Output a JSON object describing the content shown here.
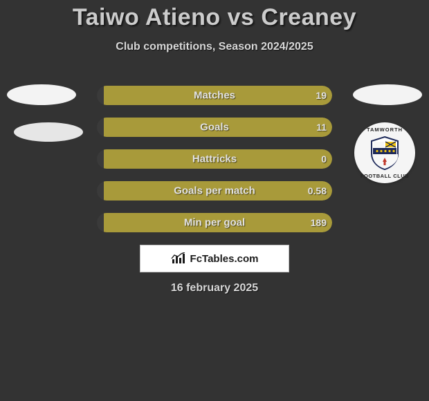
{
  "title": "Taiwo Atieno vs Creaney",
  "subtitle": "Club competitions, Season 2024/2025",
  "date": "16 february 2025",
  "branding_text": "FcTables.com",
  "badge": {
    "top_text": "TAMWORTH",
    "bottom_text": "FOOTBALL CLUB",
    "shield_bg": "#ffffff",
    "band_color": "#1e2a5a",
    "accent_red": "#c0392b",
    "accent_yellow": "#f1c40f"
  },
  "colors": {
    "page_bg": "#333333",
    "bar_left": "#3a3a3a",
    "bar_right": "#a89a3a",
    "text_light": "#d8d8d8",
    "title_color": "#cccccc",
    "avatar_bg": "#f3f3f3",
    "box_bg": "#ffffff",
    "box_border": "#bdbdbd"
  },
  "bars": [
    {
      "label": "Matches",
      "left_val": "",
      "right_val": "19",
      "left_pct": 3,
      "right_pct": 97
    },
    {
      "label": "Goals",
      "left_val": "",
      "right_val": "11",
      "left_pct": 3,
      "right_pct": 97
    },
    {
      "label": "Hattricks",
      "left_val": "",
      "right_val": "0",
      "left_pct": 3,
      "right_pct": 97
    },
    {
      "label": "Goals per match",
      "left_val": "",
      "right_val": "0.58",
      "left_pct": 3,
      "right_pct": 97
    },
    {
      "label": "Min per goal",
      "left_val": "",
      "right_val": "189",
      "left_pct": 3,
      "right_pct": 97
    }
  ]
}
